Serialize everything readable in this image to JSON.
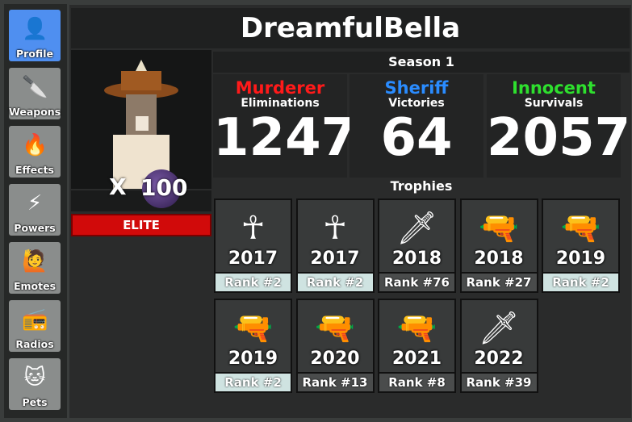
{
  "sidebar": {
    "items": [
      {
        "label": "Profile",
        "icon": "avatar-icon",
        "active": true
      },
      {
        "label": "Weapons",
        "icon": "knife-icon"
      },
      {
        "label": "Effects",
        "icon": "fire-knife-icon"
      },
      {
        "label": "Powers",
        "icon": "power-icon"
      },
      {
        "label": "Emotes",
        "icon": "emote-icon"
      },
      {
        "label": "Radios",
        "icon": "radio-icon"
      },
      {
        "label": "Pets",
        "icon": "pet-icon"
      }
    ]
  },
  "profile": {
    "username": "DreamfulBella",
    "multiplier_x": "X",
    "multiplier": "100",
    "tier": "ELITE"
  },
  "season": "Season 1",
  "stats": [
    {
      "role": "Murderer",
      "metric": "Eliminations",
      "value": "1247",
      "color": "#ff1a1a"
    },
    {
      "role": "Sheriff",
      "metric": "Victories",
      "value": "64",
      "color": "#2a8cff"
    },
    {
      "role": "Innocent",
      "metric": "Survivals",
      "value": "2057",
      "color": "#2ee02e"
    }
  ],
  "trophies_label": "Trophies",
  "trophies": [
    {
      "year": "2017",
      "rank": "Rank #2",
      "top": true,
      "icon": "candy-cane-ribbon-icon"
    },
    {
      "year": "2017",
      "rank": "Rank #2",
      "top": true,
      "icon": "silver-ribbon-icon"
    },
    {
      "year": "2018",
      "rank": "Rank #76",
      "top": false,
      "icon": "blade-icon"
    },
    {
      "year": "2018",
      "rank": "Rank #27",
      "top": false,
      "icon": "minigun-icon"
    },
    {
      "year": "2019",
      "rank": "Rank #2",
      "top": true,
      "icon": "gun-icon"
    },
    {
      "year": "2019",
      "rank": "Rank #2",
      "top": true,
      "icon": "gun-icon"
    },
    {
      "year": "2020",
      "rank": "Rank #13",
      "top": false,
      "icon": "gun-icon"
    },
    {
      "year": "2021",
      "rank": "Rank #8",
      "top": false,
      "icon": "gun-icon"
    },
    {
      "year": "2022",
      "rank": "Rank #39",
      "top": false,
      "icon": "blade-icon"
    }
  ]
}
